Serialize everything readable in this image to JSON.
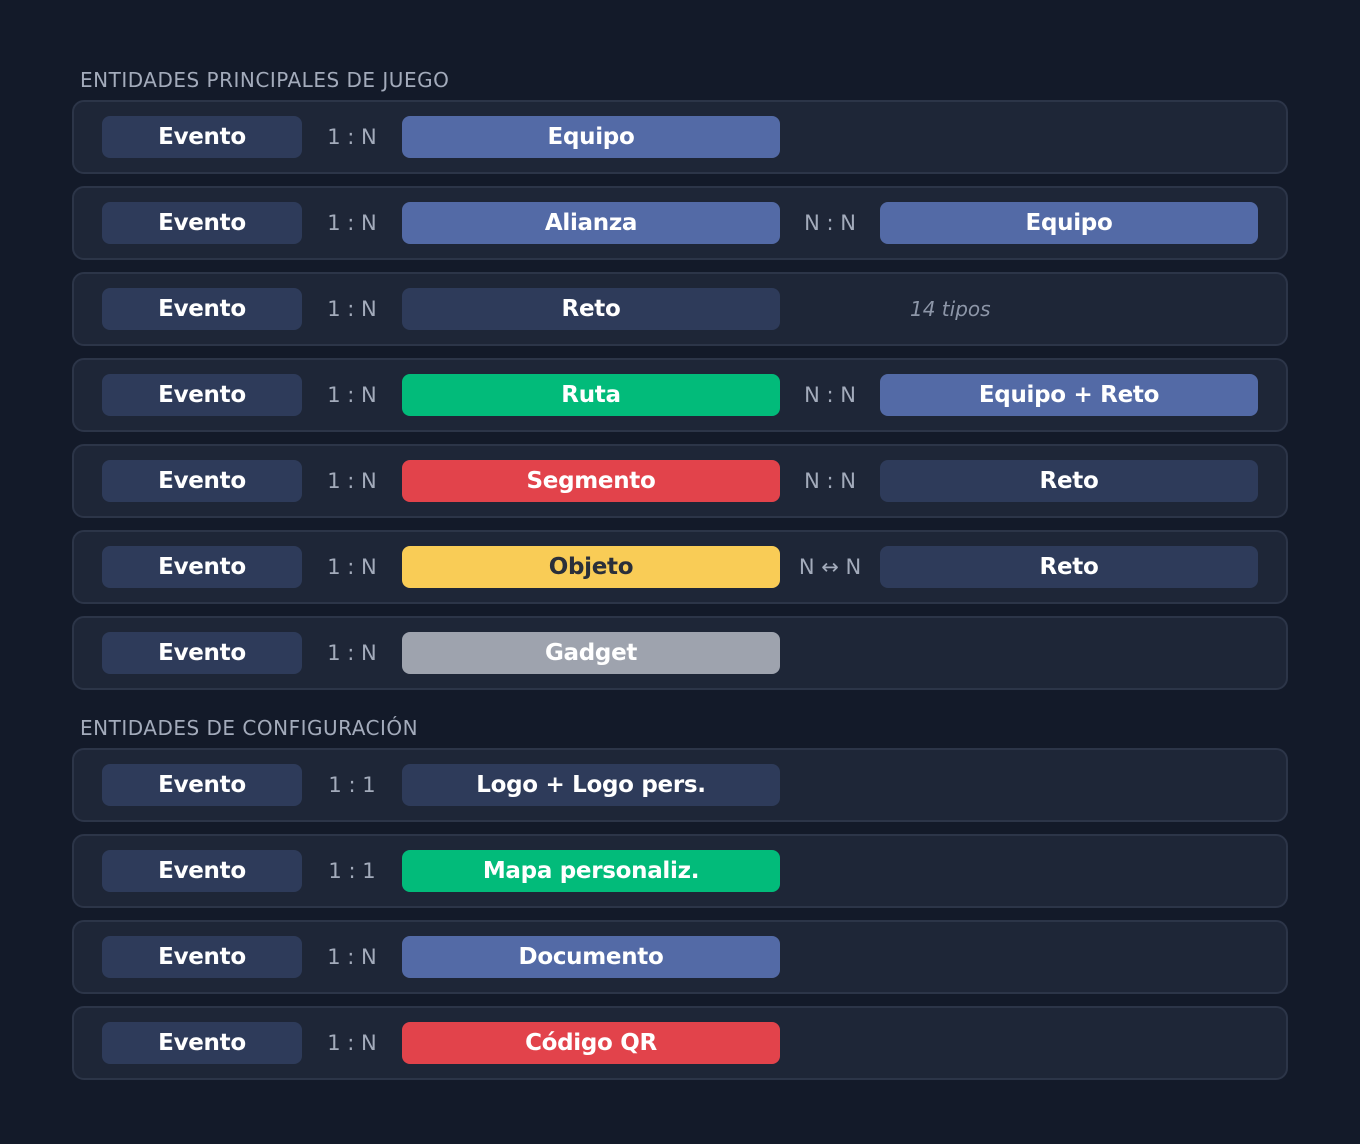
{
  "colors": {
    "dark": "#2e3b5a",
    "blue": "#536aa6",
    "green": "#02bb7a",
    "red": "#e2434b",
    "yellow": "#f9cc56",
    "gray": "#9ea3ae"
  },
  "sections": [
    {
      "title": "ENTIDADES PRINCIPALES DE JUEGO",
      "rows": [
        {
          "source": "Evento",
          "rel1": "1 : N",
          "target": "Equipo",
          "target_color": "blue"
        },
        {
          "source": "Evento",
          "rel1": "1 : N",
          "target": "Alianza",
          "target_color": "blue",
          "rel2": "N : N",
          "target2": "Equipo",
          "target2_color": "blue"
        },
        {
          "source": "Evento",
          "rel1": "1 : N",
          "target": "Reto",
          "target_color": "dark",
          "note": "14 tipos"
        },
        {
          "source": "Evento",
          "rel1": "1 : N",
          "target": "Ruta",
          "target_color": "green",
          "rel2": "N : N",
          "target2": "Equipo + Reto",
          "target2_color": "blue"
        },
        {
          "source": "Evento",
          "rel1": "1 : N",
          "target": "Segmento",
          "target_color": "red",
          "rel2": "N : N",
          "target2": "Reto",
          "target2_color": "dark"
        },
        {
          "source": "Evento",
          "rel1": "1 : N",
          "target": "Objeto",
          "target_color": "yellow",
          "rel2": "N ↔ N",
          "target2": "Reto",
          "target2_color": "dark"
        },
        {
          "source": "Evento",
          "rel1": "1 : N",
          "target": "Gadget",
          "target_color": "gray"
        }
      ]
    },
    {
      "title": "ENTIDADES DE CONFIGURACIÓN",
      "rows": [
        {
          "source": "Evento",
          "rel1": "1 : 1",
          "target": "Logo + Logo pers.",
          "target_color": "dark"
        },
        {
          "source": "Evento",
          "rel1": "1 : 1",
          "target": "Mapa personaliz.",
          "target_color": "green"
        },
        {
          "source": "Evento",
          "rel1": "1 : N",
          "target": "Documento",
          "target_color": "blue"
        },
        {
          "source": "Evento",
          "rel1": "1 : N",
          "target": "Código QR",
          "target_color": "red"
        }
      ]
    }
  ]
}
